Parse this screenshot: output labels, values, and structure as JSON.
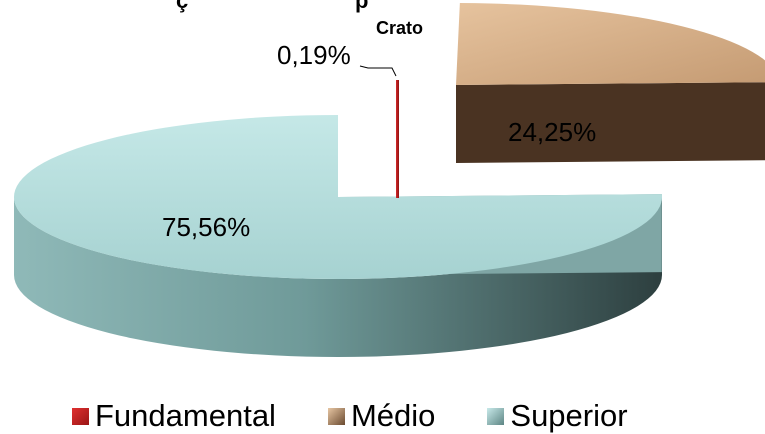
{
  "chart_data": {
    "type": "pie",
    "style": "3d-exploded",
    "title_fragments": [
      "ç",
      "p"
    ],
    "subtitle": "Crato",
    "categories": [
      "Fundamental",
      "Médio",
      "Superior"
    ],
    "values": [
      0.19,
      24.25,
      75.56
    ],
    "unit": "%",
    "data_labels": [
      "0,19%",
      "24,25%",
      "75,56%"
    ],
    "colors": [
      "#b51d1d",
      "#d9b48d",
      "#b6dedd"
    ],
    "legend_placement": "bottom"
  }
}
